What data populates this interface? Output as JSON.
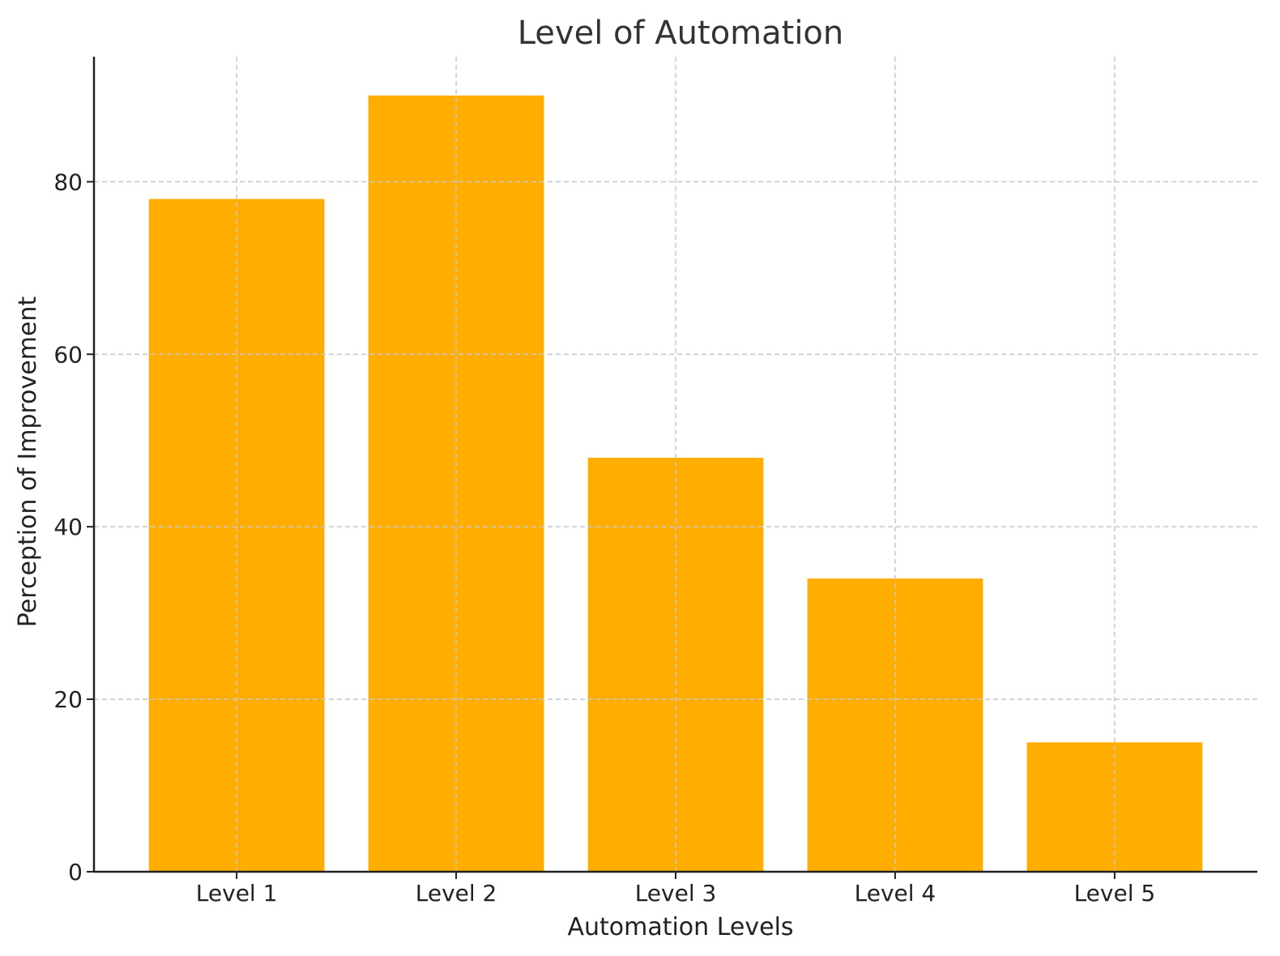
{
  "chart_data": {
    "type": "bar",
    "title": "Level of Automation",
    "xlabel": "Automation Levels",
    "ylabel": "Perception of Improvement",
    "categories": [
      "Level 1",
      "Level 2",
      "Level 3",
      "Level 4",
      "Level 5"
    ],
    "values": [
      78,
      90,
      48,
      34,
      15
    ],
    "ylim": [
      0,
      94.5
    ],
    "yticks": [
      0,
      20,
      40,
      60,
      80
    ],
    "grid": true,
    "bar_color": "#FFAE00"
  }
}
